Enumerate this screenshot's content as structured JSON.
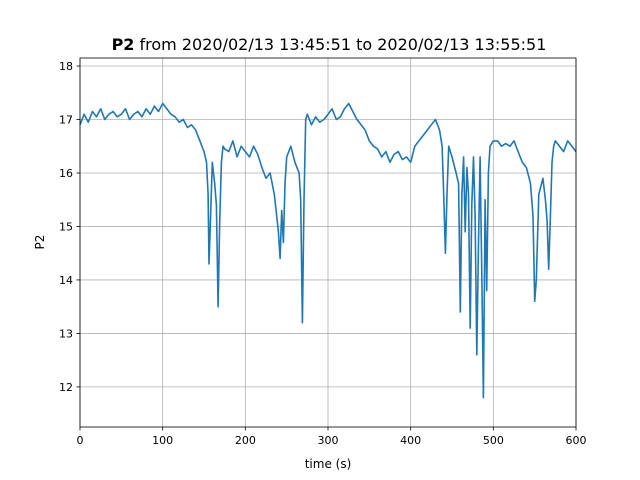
{
  "chart_data": {
    "type": "line",
    "title": {
      "bold": "P2",
      "rest": " from 2020/02/13 13:45:51 to 2020/02/13 13:55:51"
    },
    "xlabel": "time (s)",
    "ylabel": "P2",
    "xlim": [
      0,
      600
    ],
    "ylim": [
      11.25,
      18.15
    ],
    "xticks": [
      0,
      100,
      200,
      300,
      400,
      500,
      600
    ],
    "yticks": [
      12,
      13,
      14,
      15,
      16,
      17,
      18
    ],
    "grid": true,
    "color": "#1f77b4",
    "series": [
      {
        "x": [
          0,
          5,
          10,
          15,
          20,
          25,
          30,
          35,
          40,
          45,
          50,
          55,
          60,
          65,
          70,
          75,
          80,
          85,
          90,
          95,
          100,
          105,
          110,
          115,
          120,
          125,
          130,
          135,
          140,
          145,
          150,
          153,
          155,
          156,
          158,
          160,
          163,
          165,
          167,
          169,
          171,
          173,
          175,
          180,
          185,
          190,
          195,
          200,
          205,
          210,
          215,
          220,
          225,
          230,
          235,
          238,
          240,
          242,
          244,
          246,
          248,
          250,
          255,
          260,
          265,
          267,
          269,
          271,
          273,
          275,
          280,
          285,
          290,
          295,
          300,
          305,
          310,
          315,
          320,
          325,
          330,
          335,
          340,
          345,
          350,
          355,
          360,
          365,
          370,
          375,
          380,
          385,
          390,
          395,
          400,
          405,
          410,
          415,
          420,
          425,
          430,
          435,
          438,
          440,
          442,
          444,
          446,
          450,
          455,
          458,
          460,
          462,
          464,
          466,
          468,
          470,
          472,
          474,
          476,
          478,
          480,
          482,
          484,
          486,
          488,
          490,
          492,
          494,
          496,
          500,
          505,
          510,
          515,
          520,
          525,
          530,
          535,
          540,
          545,
          548,
          550,
          552,
          555,
          560,
          563,
          565,
          567,
          569,
          571,
          573,
          575,
          580,
          585,
          590,
          595,
          600
        ],
        "y": [
          16.9,
          17.1,
          16.95,
          17.15,
          17.05,
          17.2,
          17.0,
          17.1,
          17.15,
          17.05,
          17.1,
          17.2,
          17.0,
          17.1,
          17.15,
          17.05,
          17.2,
          17.1,
          17.25,
          17.15,
          17.3,
          17.2,
          17.1,
          17.05,
          16.95,
          17.0,
          16.85,
          16.9,
          16.8,
          16.6,
          16.4,
          16.2,
          15.6,
          14.3,
          15.2,
          16.2,
          15.8,
          15.4,
          13.5,
          15.1,
          16.2,
          16.5,
          16.45,
          16.4,
          16.6,
          16.3,
          16.5,
          16.4,
          16.3,
          16.5,
          16.35,
          16.1,
          15.9,
          16.0,
          15.6,
          15.2,
          14.9,
          14.4,
          15.3,
          14.7,
          15.8,
          16.3,
          16.5,
          16.2,
          16.0,
          15.5,
          13.2,
          15.5,
          17.0,
          17.1,
          16.9,
          17.05,
          16.95,
          17.0,
          17.1,
          17.2,
          17.0,
          17.05,
          17.2,
          17.3,
          17.15,
          17.0,
          16.9,
          16.8,
          16.6,
          16.5,
          16.45,
          16.3,
          16.4,
          16.2,
          16.35,
          16.4,
          16.25,
          16.3,
          16.2,
          16.5,
          16.6,
          16.7,
          16.8,
          16.9,
          17.0,
          16.8,
          16.5,
          15.6,
          14.5,
          15.6,
          16.5,
          16.3,
          16.0,
          15.8,
          13.4,
          15.6,
          16.3,
          14.9,
          16.1,
          15.6,
          13.1,
          15.4,
          16.3,
          15.2,
          12.6,
          14.7,
          16.3,
          14.1,
          11.8,
          15.5,
          13.8,
          16.0,
          16.5,
          16.6,
          16.6,
          16.5,
          16.55,
          16.5,
          16.6,
          16.4,
          16.2,
          16.1,
          15.8,
          15.2,
          13.6,
          14.0,
          15.6,
          15.9,
          15.5,
          15.1,
          14.2,
          15.2,
          16.2,
          16.5,
          16.6,
          16.5,
          16.4,
          16.6,
          16.5,
          16.4
        ]
      }
    ]
  }
}
